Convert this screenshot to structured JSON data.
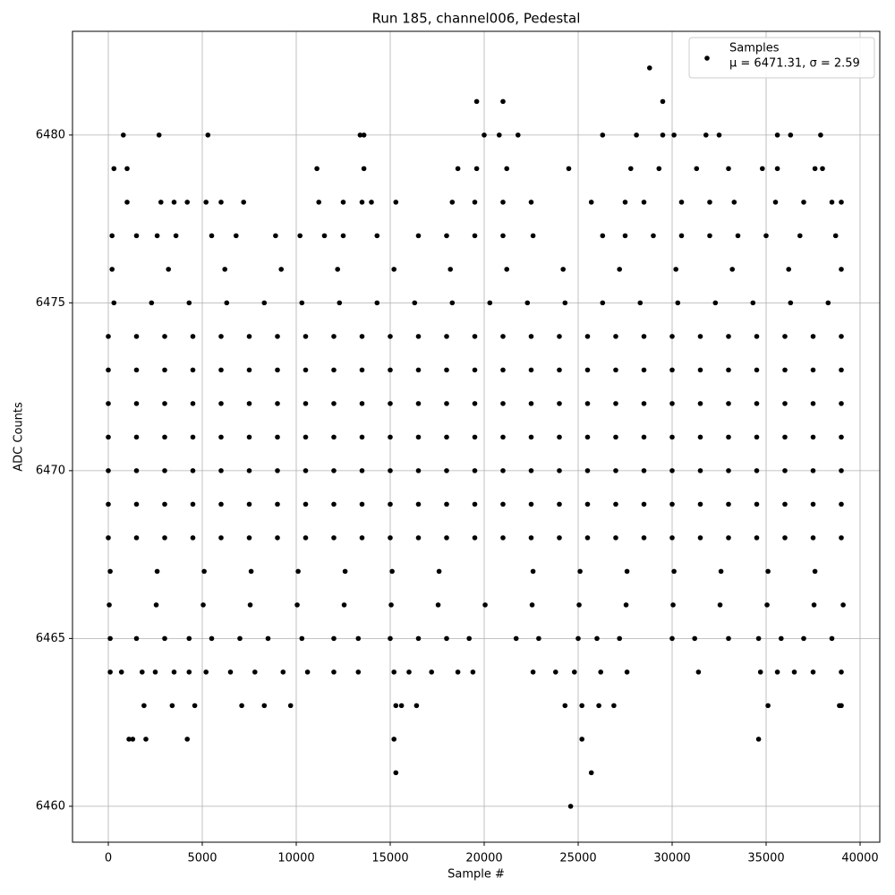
{
  "chart_data": {
    "type": "scatter",
    "title": "Run 185, channel006, Pedestal",
    "xlabel": "Sample #",
    "ylabel": "ADC Counts",
    "xlim": [
      -1905,
      41048
    ],
    "ylim": [
      6458.93,
      6483.09
    ],
    "xticks": [
      0,
      5000,
      10000,
      15000,
      20000,
      25000,
      30000,
      35000,
      40000
    ],
    "yticks": [
      6460,
      6465,
      6470,
      6475,
      6480
    ],
    "grid": true,
    "legend": "upper right",
    "legend_note": "μ = 6471.31, σ = 2.59",
    "series": [
      {
        "name": "Samples",
        "color": "#000000",
        "x": [
          28800,
          19600,
          21000,
          29500,
          800,
          2700,
          5300,
          13400,
          13600,
          20000,
          20800,
          21800,
          26300,
          28100,
          29500,
          30100,
          31800,
          32500,
          35600,
          36300,
          37900,
          300,
          1000,
          11100,
          13600,
          18600,
          19600,
          21200,
          24500,
          27800,
          29300,
          31300,
          33000,
          34800,
          35600,
          37600,
          38000,
          1000,
          2800,
          3500,
          4200,
          5200,
          6000,
          7200,
          11200,
          12500,
          13500,
          14000,
          15300,
          18300,
          19500,
          21000,
          22500,
          25700,
          27500,
          28500,
          30500,
          32000,
          33300,
          35500,
          37000,
          38500,
          39000,
          200,
          1500,
          2600,
          3600,
          5500,
          6800,
          8900,
          10200,
          11500,
          12500,
          14300,
          16500,
          18000,
          19500,
          21000,
          22600,
          26300,
          27500,
          29000,
          30500,
          32000,
          33500,
          35000,
          36800,
          38700,
          200,
          3200,
          6200,
          9200,
          12200,
          15200,
          18200,
          21200,
          24200,
          27200,
          30200,
          33200,
          36200,
          39000,
          300,
          2300,
          4300,
          6300,
          8300,
          10300,
          12300,
          14300,
          16300,
          18300,
          20300,
          22300,
          24300,
          26300,
          28300,
          30300,
          32300,
          34300,
          36300,
          38300,
          0,
          1500,
          3000,
          4500,
          6000,
          7500,
          9000,
          10500,
          12000,
          13500,
          15000,
          16500,
          18000,
          19500,
          21000,
          22500,
          24000,
          25500,
          27000,
          28500,
          30000,
          31500,
          33000,
          34500,
          36000,
          37500,
          39000,
          0,
          1500,
          3000,
          4500,
          6000,
          7500,
          9000,
          10500,
          12000,
          13500,
          15000,
          16500,
          18000,
          19500,
          21000,
          22500,
          24000,
          25500,
          27000,
          28500,
          30000,
          31500,
          33000,
          34500,
          36000,
          37500,
          39000,
          0,
          1500,
          3000,
          4500,
          6000,
          7500,
          9000,
          10500,
          12000,
          13500,
          15000,
          16500,
          18000,
          19500,
          21000,
          22500,
          24000,
          25500,
          27000,
          28500,
          30000,
          31500,
          33000,
          34500,
          36000,
          37500,
          39000,
          0,
          1500,
          3000,
          4500,
          6000,
          7500,
          9000,
          10500,
          12000,
          13500,
          15000,
          16500,
          18000,
          19500,
          21000,
          22500,
          24000,
          25500,
          27000,
          28500,
          30000,
          31500,
          33000,
          34500,
          36000,
          37500,
          39000,
          0,
          1500,
          3000,
          4500,
          6000,
          7500,
          9000,
          10500,
          12000,
          13500,
          15000,
          16500,
          18000,
          19500,
          21000,
          22500,
          24000,
          25500,
          27000,
          28500,
          30000,
          31500,
          33000,
          34500,
          36000,
          37500,
          39000,
          0,
          1500,
          3000,
          4500,
          6000,
          7500,
          9000,
          10500,
          12000,
          13500,
          15000,
          16500,
          18000,
          19500,
          21000,
          22500,
          24000,
          25500,
          27000,
          28500,
          30000,
          31500,
          33000,
          34500,
          36000,
          37500,
          39000,
          0,
          1500,
          3000,
          4500,
          6000,
          7500,
          9000,
          10500,
          12000,
          13500,
          15000,
          16500,
          18000,
          19500,
          21000,
          22500,
          24000,
          25500,
          27000,
          28500,
          30000,
          31500,
          33000,
          34500,
          36000,
          37500,
          39000,
          100,
          2600,
          5100,
          7600,
          10100,
          12600,
          15100,
          17600,
          22600,
          25100,
          27600,
          30100,
          32600,
          35100,
          37600,
          50,
          2550,
          5050,
          7550,
          10050,
          12550,
          15050,
          17550,
          20050,
          22550,
          25050,
          27550,
          30050,
          32550,
          35050,
          37550,
          39100,
          100,
          1500,
          3000,
          4300,
          5500,
          7000,
          8500,
          10300,
          12000,
          13300,
          15000,
          16500,
          18000,
          19200,
          21700,
          22900,
          25000,
          26000,
          27200,
          30000,
          31200,
          33000,
          34600,
          35800,
          37000,
          38500,
          100,
          700,
          1800,
          2500,
          3500,
          4300,
          5200,
          6500,
          7800,
          9300,
          10600,
          12000,
          13300,
          15200,
          16000,
          17200,
          18600,
          19400,
          22600,
          23800,
          24800,
          26200,
          27600,
          31400,
          34700,
          35600,
          36500,
          37500,
          39000,
          1900,
          3400,
          4600,
          7100,
          8300,
          9700,
          15300,
          15600,
          16400,
          24300,
          25200,
          26100,
          26900,
          35100,
          38900,
          39000,
          1100,
          1300,
          2000,
          4200,
          15200,
          25200,
          34600,
          15300,
          25700,
          24600
        ],
        "values": [
          6482,
          6481,
          6481,
          6481,
          6480,
          6480,
          6480,
          6480,
          6480,
          6480,
          6480,
          6480,
          6480,
          6480,
          6480,
          6480,
          6480,
          6480,
          6480,
          6480,
          6480,
          6479,
          6479,
          6479,
          6479,
          6479,
          6479,
          6479,
          6479,
          6479,
          6479,
          6479,
          6479,
          6479,
          6479,
          6479,
          6479,
          6478,
          6478,
          6478,
          6478,
          6478,
          6478,
          6478,
          6478,
          6478,
          6478,
          6478,
          6478,
          6478,
          6478,
          6478,
          6478,
          6478,
          6478,
          6478,
          6478,
          6478,
          6478,
          6478,
          6478,
          6478,
          6478,
          6477,
          6477,
          6477,
          6477,
          6477,
          6477,
          6477,
          6477,
          6477,
          6477,
          6477,
          6477,
          6477,
          6477,
          6477,
          6477,
          6477,
          6477,
          6477,
          6477,
          6477,
          6477,
          6477,
          6477,
          6477,
          6476,
          6476,
          6476,
          6476,
          6476,
          6476,
          6476,
          6476,
          6476,
          6476,
          6476,
          6476,
          6476,
          6476,
          6475,
          6475,
          6475,
          6475,
          6475,
          6475,
          6475,
          6475,
          6475,
          6475,
          6475,
          6475,
          6475,
          6475,
          6475,
          6475,
          6475,
          6475,
          6475,
          6475,
          6474,
          6474,
          6474,
          6474,
          6474,
          6474,
          6474,
          6474,
          6474,
          6474,
          6474,
          6474,
          6474,
          6474,
          6474,
          6474,
          6474,
          6474,
          6474,
          6474,
          6474,
          6474,
          6474,
          6474,
          6474,
          6474,
          6474,
          6473,
          6473,
          6473,
          6473,
          6473,
          6473,
          6473,
          6473,
          6473,
          6473,
          6473,
          6473,
          6473,
          6473,
          6473,
          6473,
          6473,
          6473,
          6473,
          6473,
          6473,
          6473,
          6473,
          6473,
          6473,
          6473,
          6473,
          6472,
          6472,
          6472,
          6472,
          6472,
          6472,
          6472,
          6472,
          6472,
          6472,
          6472,
          6472,
          6472,
          6472,
          6472,
          6472,
          6472,
          6472,
          6472,
          6472,
          6472,
          6472,
          6472,
          6472,
          6472,
          6472,
          6472,
          6471,
          6471,
          6471,
          6471,
          6471,
          6471,
          6471,
          6471,
          6471,
          6471,
          6471,
          6471,
          6471,
          6471,
          6471,
          6471,
          6471,
          6471,
          6471,
          6471,
          6471,
          6471,
          6471,
          6471,
          6471,
          6471,
          6471,
          6470,
          6470,
          6470,
          6470,
          6470,
          6470,
          6470,
          6470,
          6470,
          6470,
          6470,
          6470,
          6470,
          6470,
          6470,
          6470,
          6470,
          6470,
          6470,
          6470,
          6470,
          6470,
          6470,
          6470,
          6470,
          6470,
          6470,
          6469,
          6469,
          6469,
          6469,
          6469,
          6469,
          6469,
          6469,
          6469,
          6469,
          6469,
          6469,
          6469,
          6469,
          6469,
          6469,
          6469,
          6469,
          6469,
          6469,
          6469,
          6469,
          6469,
          6469,
          6469,
          6469,
          6469,
          6468,
          6468,
          6468,
          6468,
          6468,
          6468,
          6468,
          6468,
          6468,
          6468,
          6468,
          6468,
          6468,
          6468,
          6468,
          6468,
          6468,
          6468,
          6468,
          6468,
          6468,
          6468,
          6468,
          6468,
          6468,
          6468,
          6468,
          6467,
          6467,
          6467,
          6467,
          6467,
          6467,
          6467,
          6467,
          6467,
          6467,
          6467,
          6467,
          6467,
          6467,
          6467,
          6466,
          6466,
          6466,
          6466,
          6466,
          6466,
          6466,
          6466,
          6466,
          6466,
          6466,
          6466,
          6466,
          6466,
          6466,
          6466,
          6466,
          6465,
          6465,
          6465,
          6465,
          6465,
          6465,
          6465,
          6465,
          6465,
          6465,
          6465,
          6465,
          6465,
          6465,
          6465,
          6465,
          6465,
          6465,
          6465,
          6465,
          6465,
          6465,
          6465,
          6465,
          6465,
          6465,
          6464,
          6464,
          6464,
          6464,
          6464,
          6464,
          6464,
          6464,
          6464,
          6464,
          6464,
          6464,
          6464,
          6464,
          6464,
          6464,
          6464,
          6464,
          6464,
          6464,
          6464,
          6464,
          6464,
          6464,
          6464,
          6464,
          6464,
          6464,
          6464,
          6463,
          6463,
          6463,
          6463,
          6463,
          6463,
          6463,
          6463,
          6463,
          6463,
          6463,
          6463,
          6463,
          6463,
          6463,
          6463,
          6462,
          6462,
          6462,
          6462,
          6462,
          6462,
          6462,
          6461,
          6461,
          6460
        ]
      }
    ]
  }
}
